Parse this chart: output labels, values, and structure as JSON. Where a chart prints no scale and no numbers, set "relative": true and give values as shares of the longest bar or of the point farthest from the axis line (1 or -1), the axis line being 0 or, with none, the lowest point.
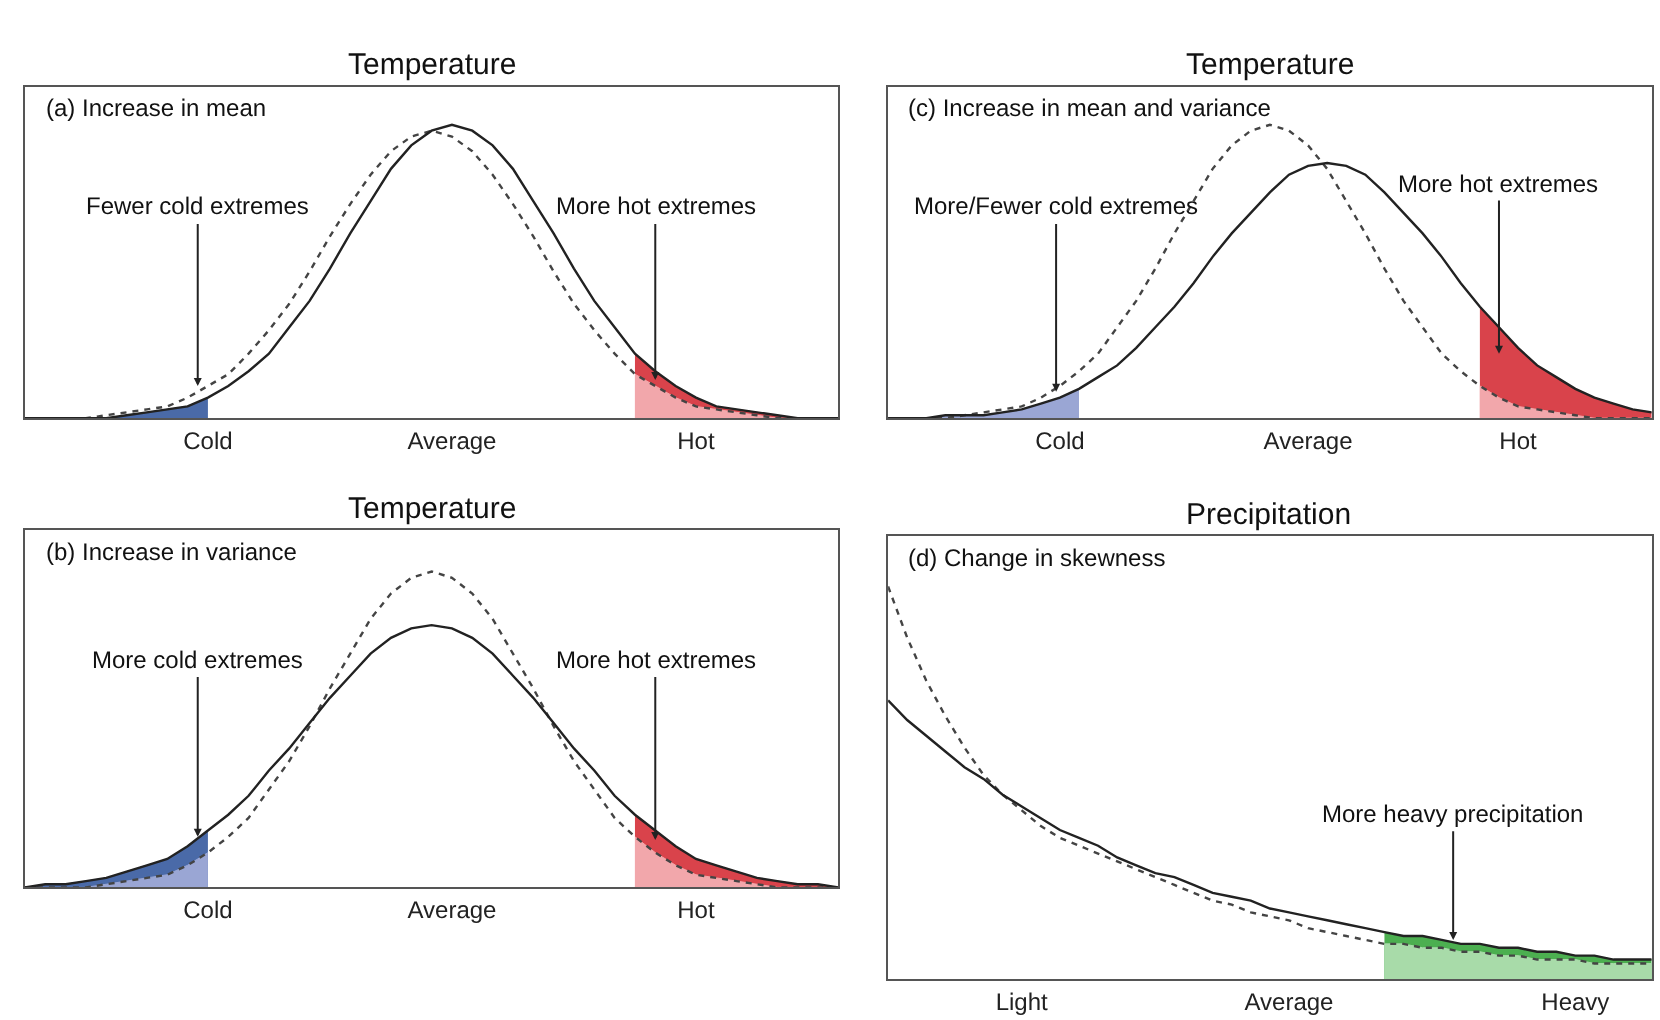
{
  "chart_data": [
    {
      "type": "line",
      "relative": true,
      "title": "Temperature",
      "subtitle": "(a) Increase in mean",
      "categories": [
        null,
        null,
        null,
        null,
        null,
        null,
        null,
        null,
        null,
        "Cold",
        null,
        null,
        null,
        null,
        null,
        null,
        null,
        null,
        null,
        null,
        null,
        "Average",
        null,
        null,
        null,
        null,
        null,
        null,
        null,
        null,
        null,
        null,
        null,
        "Hot",
        null,
        null,
        null,
        null,
        null,
        null,
        null
      ],
      "annotations": [
        "Fewer cold extremes",
        "More hot extremes"
      ],
      "series": [
        {
          "type": "area",
          "color": "#4a6aa8",
          "values": [
            0,
            0,
            0,
            0,
            0,
            0.01,
            0.02,
            0.03,
            0.04,
            0.07,
            null,
            null,
            null,
            null,
            null,
            null,
            null,
            null,
            null,
            null,
            null,
            null,
            null,
            null,
            null,
            null,
            null,
            null,
            null,
            null,
            null,
            null,
            null,
            null,
            null,
            null,
            null,
            null,
            null,
            null,
            null
          ]
        },
        {
          "type": "area",
          "color": "#d9434b",
          "values": [
            null,
            null,
            null,
            null,
            null,
            null,
            null,
            null,
            null,
            null,
            null,
            null,
            null,
            null,
            null,
            null,
            null,
            null,
            null,
            null,
            null,
            null,
            null,
            null,
            null,
            null,
            null,
            null,
            null,
            null,
            0.22,
            0.16,
            0.11,
            0.07,
            0.04,
            0.03,
            0.02,
            0.01,
            0,
            0,
            0
          ]
        },
        {
          "type": "area",
          "color": "#f2a7ab",
          "values": [
            null,
            null,
            null,
            null,
            null,
            null,
            null,
            null,
            null,
            null,
            null,
            null,
            null,
            null,
            null,
            null,
            null,
            null,
            null,
            null,
            null,
            null,
            null,
            null,
            null,
            null,
            null,
            null,
            null,
            null,
            0.15,
            0.11,
            0.07,
            0.04,
            0.03,
            0.02,
            0.01,
            0,
            0,
            0,
            0
          ]
        },
        {
          "type": "line",
          "color": "#444444",
          "line_style": "dotted",
          "values": [
            0,
            0,
            0,
            0,
            0.01,
            0.02,
            0.03,
            0.04,
            0.07,
            0.11,
            0.15,
            0.22,
            0.3,
            0.39,
            0.5,
            0.62,
            0.73,
            0.83,
            0.91,
            0.96,
            0.98,
            0.96,
            0.91,
            0.83,
            0.73,
            0.62,
            0.5,
            0.39,
            0.3,
            0.22,
            0.15,
            0.11,
            0.07,
            0.04,
            0.03,
            0.02,
            0.01,
            0,
            0,
            0,
            0
          ]
        },
        {
          "type": "line",
          "color": "#222222",
          "line_style": "solid",
          "values": [
            0,
            0,
            0,
            0,
            0,
            0.01,
            0.02,
            0.03,
            0.04,
            0.07,
            0.11,
            0.16,
            0.22,
            0.31,
            0.4,
            0.51,
            0.63,
            0.74,
            0.85,
            0.93,
            0.98,
            1.0,
            0.98,
            0.93,
            0.85,
            0.74,
            0.63,
            0.51,
            0.4,
            0.31,
            0.22,
            0.16,
            0.11,
            0.07,
            0.04,
            0.03,
            0.02,
            0.01,
            0,
            0,
            0
          ]
        }
      ]
    },
    {
      "type": "line",
      "relative": true,
      "title": "Temperature",
      "subtitle": "(c) Increase in mean and variance",
      "categories": [
        null,
        null,
        null,
        null,
        null,
        null,
        null,
        null,
        null,
        "Cold",
        null,
        null,
        null,
        null,
        null,
        null,
        null,
        null,
        null,
        null,
        null,
        null,
        "Average",
        null,
        null,
        null,
        null,
        null,
        null,
        null,
        null,
        null,
        null,
        "Hot",
        null,
        null,
        null,
        null,
        null,
        null,
        null
      ],
      "annotations": [
        "More/Fewer cold extremes",
        "More hot extremes"
      ],
      "series": [
        {
          "type": "area",
          "color": "#9aa6d4",
          "values": [
            0,
            0,
            0,
            0.01,
            0.01,
            0.01,
            0.02,
            0.03,
            0.05,
            0.07,
            0.1,
            null,
            null,
            null,
            null,
            null,
            null,
            null,
            null,
            null,
            null,
            null,
            null,
            null,
            null,
            null,
            null,
            null,
            null,
            null,
            null,
            null,
            null,
            null,
            null,
            null,
            null,
            null,
            null,
            null,
            null
          ]
        },
        {
          "type": "area",
          "color": "#d9434b",
          "values": [
            null,
            null,
            null,
            null,
            null,
            null,
            null,
            null,
            null,
            null,
            null,
            null,
            null,
            null,
            null,
            null,
            null,
            null,
            null,
            null,
            null,
            null,
            null,
            null,
            null,
            null,
            null,
            null,
            null,
            null,
            null,
            0.38,
            0.31,
            0.24,
            0.18,
            0.14,
            0.1,
            0.07,
            0.05,
            0.03,
            0.02
          ]
        },
        {
          "type": "area",
          "color": "#f2a7ab",
          "values": [
            null,
            null,
            null,
            null,
            null,
            null,
            null,
            null,
            null,
            null,
            null,
            null,
            null,
            null,
            null,
            null,
            null,
            null,
            null,
            null,
            null,
            null,
            null,
            null,
            null,
            null,
            null,
            null,
            null,
            null,
            null,
            0.11,
            0.07,
            0.04,
            0.03,
            0.02,
            0.01,
            0,
            0,
            0,
            0
          ]
        },
        {
          "type": "line",
          "color": "#444444",
          "line_style": "dotted",
          "values": [
            0,
            0,
            0,
            0,
            0.01,
            0.02,
            0.03,
            0.04,
            0.07,
            0.11,
            0.16,
            0.22,
            0.31,
            0.4,
            0.51,
            0.63,
            0.74,
            0.85,
            0.93,
            0.98,
            1.0,
            0.98,
            0.93,
            0.85,
            0.74,
            0.63,
            0.51,
            0.4,
            0.31,
            0.22,
            0.16,
            0.11,
            0.07,
            0.04,
            0.03,
            0.02,
            0.01,
            0,
            0,
            0,
            0
          ]
        },
        {
          "type": "line",
          "color": "#222222",
          "line_style": "solid",
          "values": [
            0,
            0,
            0,
            0.01,
            0.01,
            0.01,
            0.02,
            0.03,
            0.05,
            0.07,
            0.1,
            0.14,
            0.18,
            0.24,
            0.31,
            0.38,
            0.46,
            0.55,
            0.63,
            0.7,
            0.77,
            0.83,
            0.86,
            0.87,
            0.86,
            0.83,
            0.77,
            0.7,
            0.63,
            0.55,
            0.46,
            0.38,
            0.31,
            0.24,
            0.18,
            0.14,
            0.1,
            0.07,
            0.05,
            0.03,
            0.02
          ]
        }
      ]
    },
    {
      "type": "line",
      "relative": true,
      "title": "Temperature",
      "subtitle": "(b) Increase in variance",
      "categories": [
        null,
        null,
        null,
        null,
        null,
        null,
        null,
        null,
        null,
        "Cold",
        null,
        null,
        null,
        null,
        null,
        null,
        null,
        null,
        null,
        null,
        null,
        "Average",
        null,
        null,
        null,
        null,
        null,
        null,
        null,
        null,
        null,
        null,
        null,
        "Hot",
        null,
        null,
        null,
        null,
        null,
        null,
        null
      ],
      "annotations": [
        "More cold extremes",
        "More hot extremes"
      ],
      "series": [
        {
          "type": "area",
          "color": "#4a6aa8",
          "values": [
            0,
            0.01,
            0.01,
            0.02,
            0.03,
            0.05,
            0.07,
            0.09,
            0.13,
            0.18,
            null,
            null,
            null,
            null,
            null,
            null,
            null,
            null,
            null,
            null,
            null,
            null,
            null,
            null,
            null,
            null,
            null,
            null,
            null,
            null,
            null,
            null,
            null,
            null,
            null,
            null,
            null,
            null,
            null,
            null,
            null
          ]
        },
        {
          "type": "area",
          "color": "#9aa6d4",
          "values": [
            0,
            0,
            0,
            0,
            0.01,
            0.02,
            0.03,
            0.04,
            0.07,
            0.11,
            null,
            null,
            null,
            null,
            null,
            null,
            null,
            null,
            null,
            null,
            null,
            null,
            null,
            null,
            null,
            null,
            null,
            null,
            null,
            null,
            null,
            null,
            null,
            null,
            null,
            null,
            null,
            null,
            null,
            null,
            null
          ]
        },
        {
          "type": "area",
          "color": "#d9434b",
          "values": [
            null,
            null,
            null,
            null,
            null,
            null,
            null,
            null,
            null,
            null,
            null,
            null,
            null,
            null,
            null,
            null,
            null,
            null,
            null,
            null,
            null,
            null,
            null,
            null,
            null,
            null,
            null,
            null,
            null,
            null,
            0.23,
            0.18,
            0.13,
            0.09,
            0.07,
            0.05,
            0.03,
            0.02,
            0.01,
            0.01,
            0
          ]
        },
        {
          "type": "area",
          "color": "#f2a7ab",
          "values": [
            null,
            null,
            null,
            null,
            null,
            null,
            null,
            null,
            null,
            null,
            null,
            null,
            null,
            null,
            null,
            null,
            null,
            null,
            null,
            null,
            null,
            null,
            null,
            null,
            null,
            null,
            null,
            null,
            null,
            null,
            0.16,
            0.11,
            0.07,
            0.04,
            0.03,
            0.02,
            0.01,
            0,
            0,
            0,
            0
          ]
        },
        {
          "type": "line",
          "color": "#444444",
          "line_style": "dotted",
          "values": [
            0,
            0,
            0,
            0,
            0.01,
            0.02,
            0.03,
            0.04,
            0.07,
            0.11,
            0.16,
            0.22,
            0.31,
            0.4,
            0.51,
            0.63,
            0.74,
            0.85,
            0.93,
            0.98,
            1.0,
            0.98,
            0.93,
            0.85,
            0.74,
            0.63,
            0.51,
            0.4,
            0.31,
            0.22,
            0.16,
            0.11,
            0.07,
            0.04,
            0.03,
            0.02,
            0.01,
            0,
            0,
            0,
            0
          ]
        },
        {
          "type": "line",
          "color": "#222222",
          "line_style": "solid",
          "values": [
            0,
            0.01,
            0.01,
            0.02,
            0.03,
            0.05,
            0.07,
            0.09,
            0.13,
            0.18,
            0.23,
            0.29,
            0.37,
            0.44,
            0.52,
            0.6,
            0.67,
            0.74,
            0.79,
            0.82,
            0.83,
            0.82,
            0.79,
            0.74,
            0.67,
            0.6,
            0.52,
            0.44,
            0.37,
            0.29,
            0.23,
            0.18,
            0.13,
            0.09,
            0.07,
            0.05,
            0.03,
            0.02,
            0.01,
            0.01,
            0
          ]
        }
      ]
    },
    {
      "type": "line",
      "relative": true,
      "title": "Precipitation",
      "subtitle": "(d) Change in skewness",
      "categories": [
        null,
        null,
        null,
        null,
        null,
        null,
        null,
        "Light",
        null,
        null,
        null,
        null,
        null,
        null,
        null,
        null,
        null,
        null,
        null,
        null,
        null,
        "Average",
        null,
        null,
        null,
        null,
        null,
        null,
        null,
        null,
        null,
        null,
        null,
        null,
        null,
        null,
        "Heavy",
        null,
        null,
        null,
        null
      ],
      "annotations": [
        "More heavy precipitation"
      ],
      "series": [
        {
          "type": "area",
          "color": "#4caf50",
          "values": [
            null,
            null,
            null,
            null,
            null,
            null,
            null,
            null,
            null,
            null,
            null,
            null,
            null,
            null,
            null,
            null,
            null,
            null,
            null,
            null,
            null,
            null,
            null,
            null,
            null,
            null,
            0.12,
            0.11,
            0.11,
            0.1,
            0.09,
            0.09,
            0.08,
            0.08,
            0.07,
            0.07,
            0.06,
            0.06,
            0.05,
            0.05,
            0.05
          ]
        },
        {
          "type": "area",
          "color": "#a8dba9",
          "values": [
            null,
            null,
            null,
            null,
            null,
            null,
            null,
            null,
            null,
            null,
            null,
            null,
            null,
            null,
            null,
            null,
            null,
            null,
            null,
            null,
            null,
            null,
            null,
            null,
            null,
            null,
            0.09,
            0.09,
            0.08,
            0.08,
            0.07,
            0.07,
            0.06,
            0.06,
            0.05,
            0.05,
            0.05,
            0.04,
            0.04,
            0.04,
            0.04
          ]
        },
        {
          "type": "line",
          "color": "#444444",
          "line_style": "dotted",
          "values": [
            1.0,
            0.87,
            0.76,
            0.67,
            0.59,
            0.52,
            0.47,
            0.43,
            0.39,
            0.36,
            0.34,
            0.32,
            0.3,
            0.28,
            0.26,
            0.24,
            0.22,
            0.2,
            0.19,
            0.17,
            0.16,
            0.15,
            0.13,
            0.12,
            0.11,
            0.1,
            0.09,
            0.09,
            0.08,
            0.08,
            0.07,
            0.07,
            0.06,
            0.06,
            0.05,
            0.05,
            0.05,
            0.04,
            0.04,
            0.04,
            0.04
          ]
        },
        {
          "type": "line",
          "color": "#222222",
          "line_style": "solid",
          "values": [
            0.71,
            0.66,
            0.62,
            0.58,
            0.54,
            0.51,
            0.47,
            0.44,
            0.41,
            0.38,
            0.36,
            0.34,
            0.31,
            0.29,
            0.27,
            0.26,
            0.24,
            0.22,
            0.21,
            0.2,
            0.18,
            0.17,
            0.16,
            0.15,
            0.14,
            0.13,
            0.12,
            0.11,
            0.11,
            0.1,
            0.09,
            0.09,
            0.08,
            0.08,
            0.07,
            0.07,
            0.06,
            0.06,
            0.05,
            0.05,
            0.05
          ]
        }
      ]
    }
  ]
}
